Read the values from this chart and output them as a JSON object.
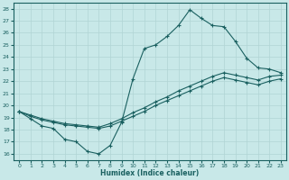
{
  "xlabel": "Humidex (Indice chaleur)",
  "ylabel": "",
  "xlim": [
    -0.5,
    23.5
  ],
  "ylim": [
    15.5,
    28.5
  ],
  "xticks": [
    0,
    1,
    2,
    3,
    4,
    5,
    6,
    7,
    8,
    9,
    10,
    11,
    12,
    13,
    14,
    15,
    16,
    17,
    18,
    19,
    20,
    21,
    22,
    23
  ],
  "yticks": [
    16,
    17,
    18,
    19,
    20,
    21,
    22,
    23,
    24,
    25,
    26,
    27,
    28
  ],
  "background_color": "#c8e8e8",
  "grid_color": "#b0d4d4",
  "line_color": "#1a6060",
  "line1_x": [
    0,
    1,
    2,
    3,
    4,
    5,
    6,
    7,
    8,
    9,
    10,
    11,
    12,
    13,
    14,
    15,
    16,
    17,
    18,
    19,
    20,
    21,
    22,
    23
  ],
  "line1_y": [
    19.5,
    18.9,
    18.3,
    18.1,
    17.2,
    17.0,
    16.2,
    16.0,
    16.7,
    18.6,
    22.2,
    24.7,
    25.0,
    25.7,
    26.6,
    27.9,
    27.2,
    26.6,
    26.5,
    25.3,
    23.9,
    23.1,
    23.0,
    22.7
  ],
  "line2_x": [
    0,
    1,
    2,
    3,
    4,
    5,
    6,
    7,
    8,
    9,
    10,
    11,
    12,
    13,
    14,
    15,
    16,
    17,
    18,
    19,
    20,
    21,
    22,
    23
  ],
  "line2_y": [
    19.5,
    19.2,
    18.9,
    18.7,
    18.5,
    18.4,
    18.3,
    18.2,
    18.5,
    18.9,
    19.4,
    19.8,
    20.3,
    20.7,
    21.2,
    21.6,
    22.0,
    22.4,
    22.7,
    22.5,
    22.3,
    22.1,
    22.4,
    22.5
  ],
  "line3_x": [
    0,
    1,
    2,
    3,
    4,
    5,
    6,
    7,
    8,
    9,
    10,
    11,
    12,
    13,
    14,
    15,
    16,
    17,
    18,
    19,
    20,
    21,
    22,
    23
  ],
  "line3_y": [
    19.5,
    19.1,
    18.8,
    18.6,
    18.4,
    18.3,
    18.2,
    18.1,
    18.3,
    18.7,
    19.1,
    19.5,
    20.0,
    20.4,
    20.8,
    21.2,
    21.6,
    22.0,
    22.3,
    22.1,
    21.9,
    21.7,
    22.0,
    22.2
  ]
}
